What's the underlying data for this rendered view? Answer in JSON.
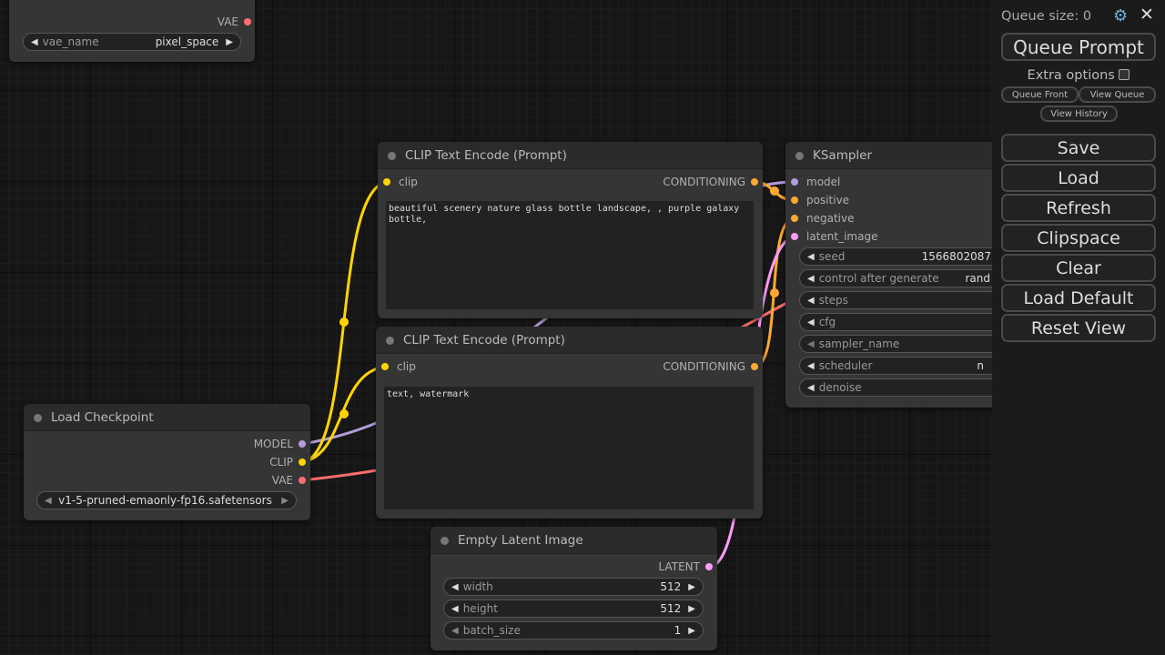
{
  "colors": {
    "model": "#b39ddb",
    "clip": "#ffd500",
    "vae": "#ff6e6e",
    "conditioning": "#ffa931",
    "latent": "#ff9cf9"
  },
  "vae_loader": {
    "output": "VAE",
    "widget": {
      "label": "vae_name",
      "value": "pixel_space"
    }
  },
  "clip_pos": {
    "title": "CLIP Text Encode (Prompt)",
    "input": "clip",
    "output": "CONDITIONING",
    "text": "beautiful scenery nature glass bottle landscape, , purple galaxy bottle,"
  },
  "clip_neg": {
    "title": "CLIP Text Encode (Prompt)",
    "input": "clip",
    "output": "CONDITIONING",
    "text": "text, watermark"
  },
  "ksampler": {
    "title": "KSampler",
    "inputs": [
      "model",
      "positive",
      "negative",
      "latent_image"
    ],
    "widgets": [
      {
        "label": "seed",
        "value": "1566802087"
      },
      {
        "label": "control after generate",
        "value": "rand"
      },
      {
        "label": "steps",
        "value": ""
      },
      {
        "label": "cfg",
        "value": ""
      },
      {
        "label": "sampler_name",
        "value": ""
      },
      {
        "label": "scheduler",
        "value": "n"
      },
      {
        "label": "denoise",
        "value": ""
      }
    ]
  },
  "checkpoint": {
    "title": "Load Checkpoint",
    "outputs": [
      "MODEL",
      "CLIP",
      "VAE"
    ],
    "widget": {
      "value": "v1-5-pruned-emaonly-fp16.safetensors"
    }
  },
  "latent": {
    "title": "Empty Latent Image",
    "output": "LATENT",
    "widgets": [
      {
        "label": "width",
        "value": "512"
      },
      {
        "label": "height",
        "value": "512"
      },
      {
        "label": "batch_size",
        "value": "1"
      }
    ]
  },
  "panel": {
    "queue_size": "Queue size: 0",
    "queue_prompt": "Queue Prompt",
    "extra_options": "Extra options",
    "queue_front": "Queue Front",
    "view_queue": "View Queue",
    "view_history": "View History",
    "buttons": [
      "Save",
      "Load",
      "Refresh",
      "Clipspace",
      "Clear",
      "Load Default",
      "Reset View"
    ]
  }
}
